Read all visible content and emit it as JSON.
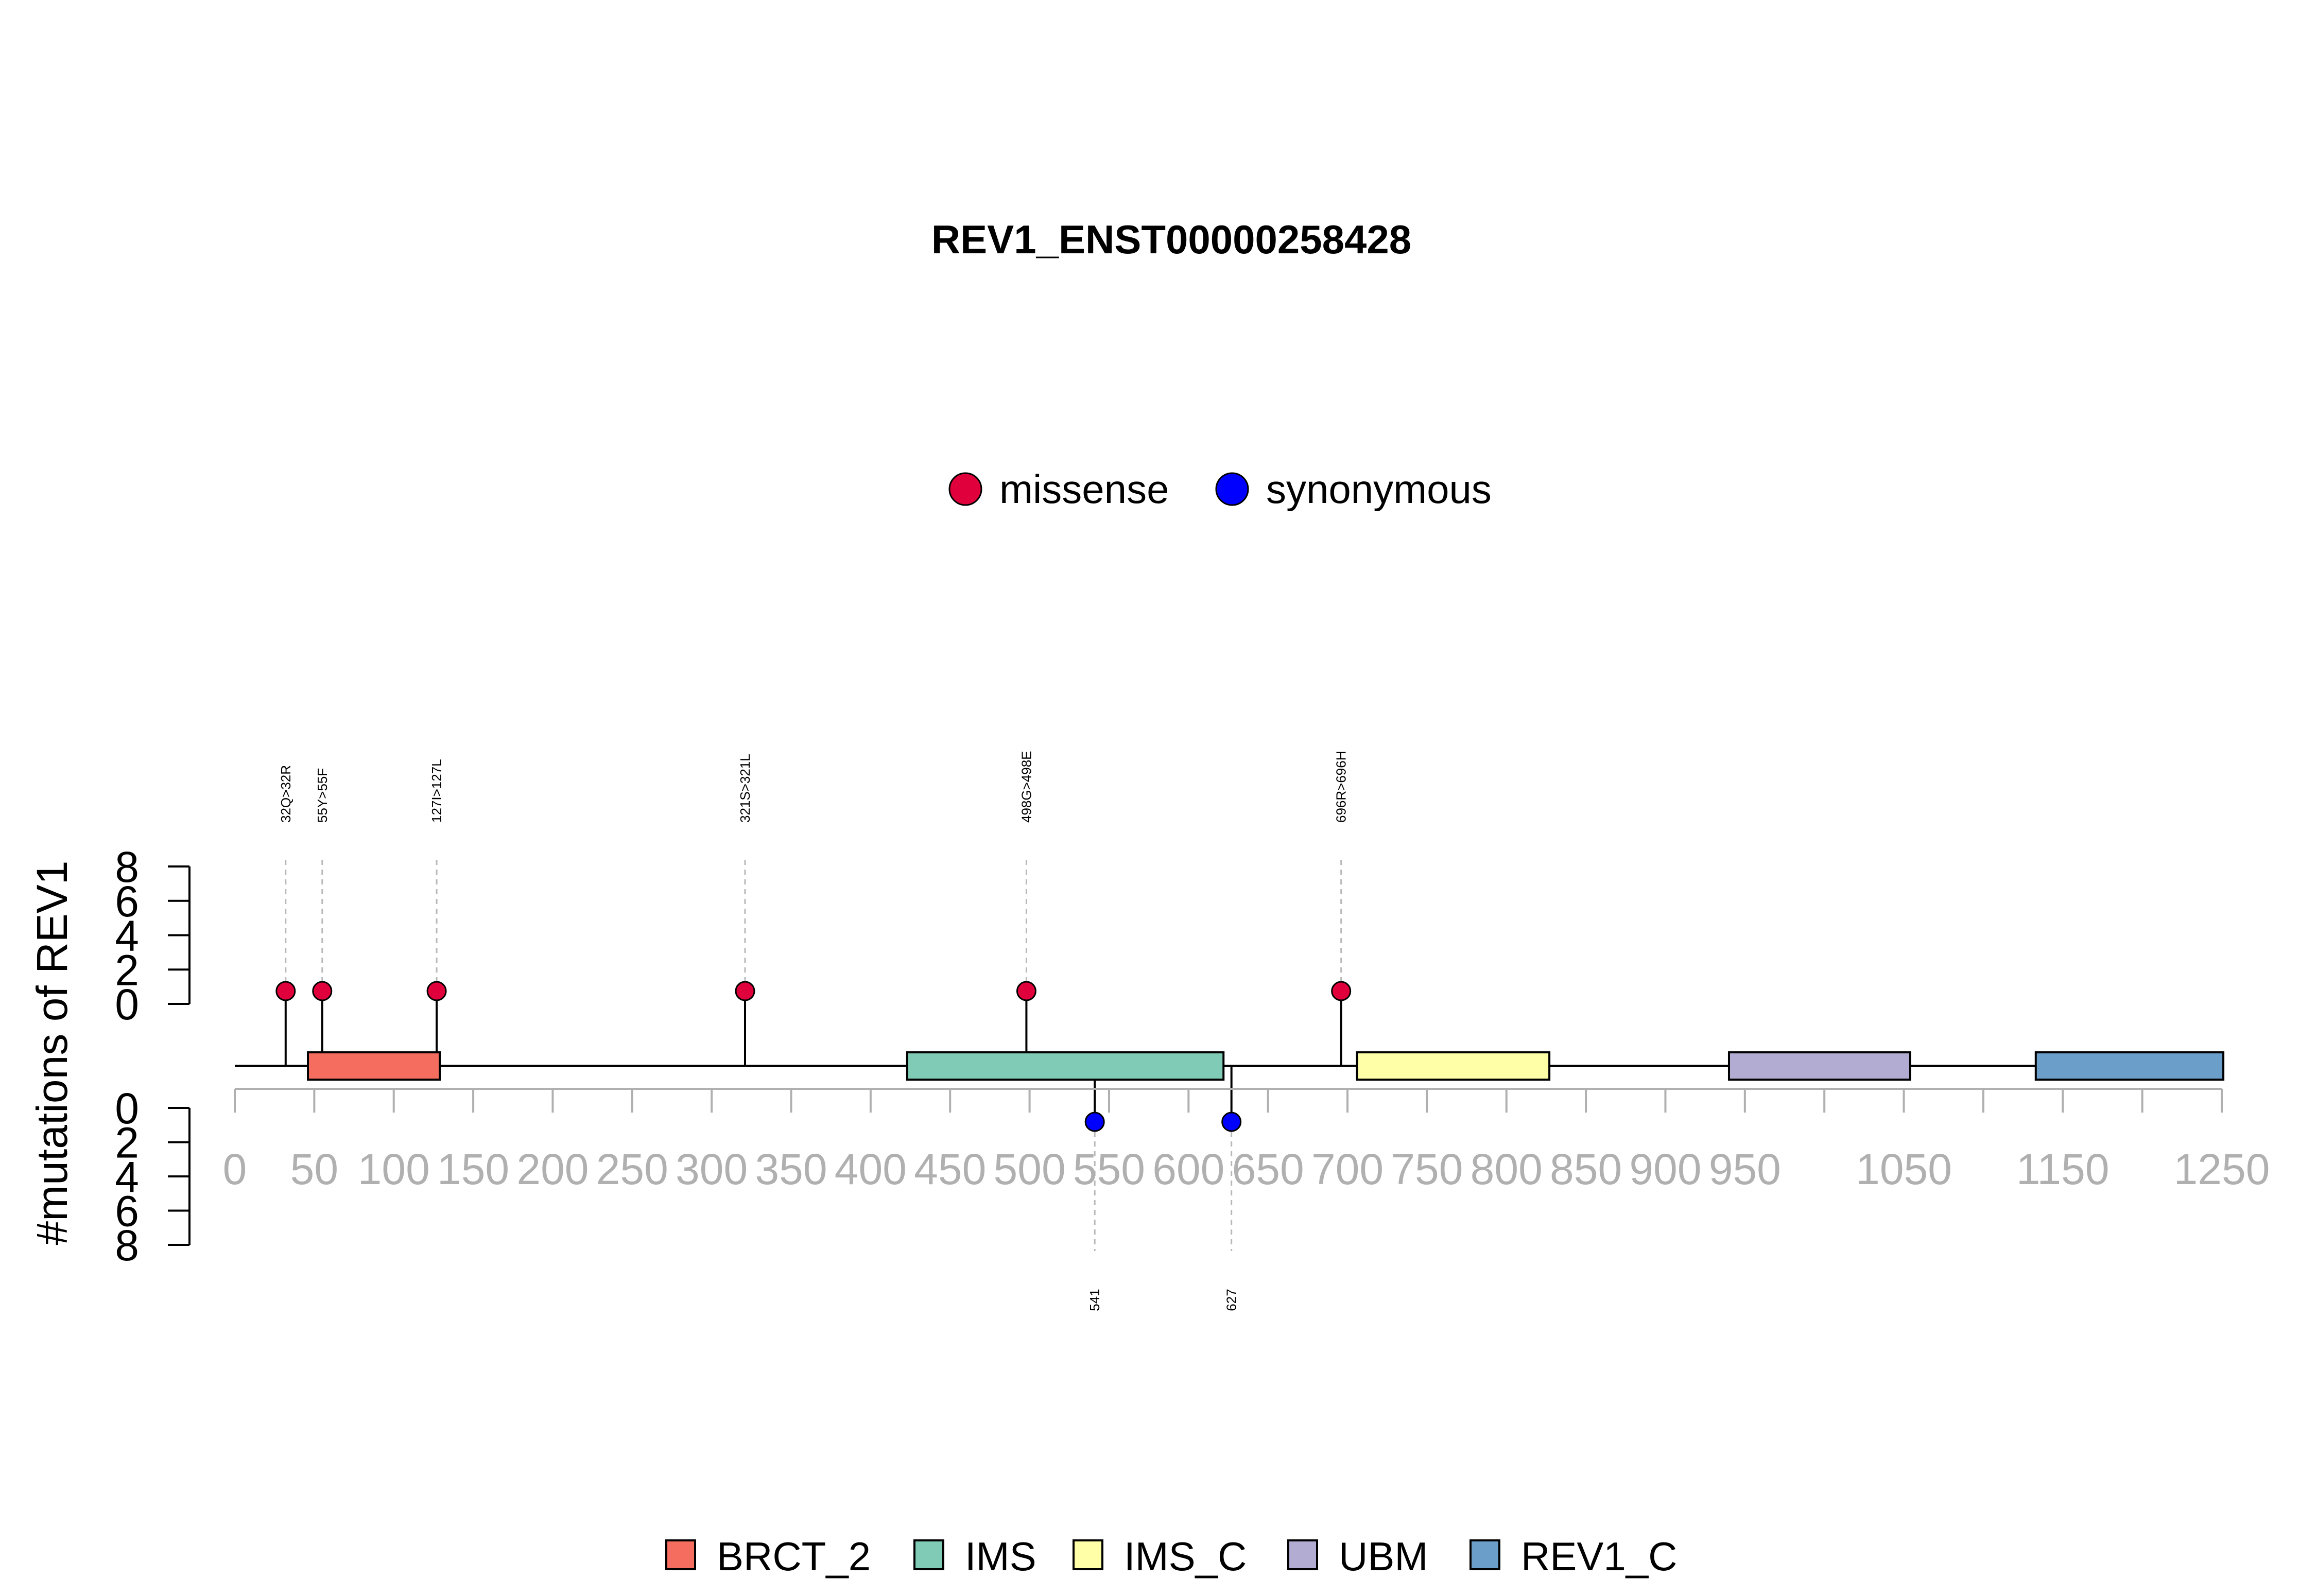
{
  "chart_data": {
    "type": "lollipop",
    "title": "REV1_ENST00000258428",
    "ylabel": "#mutations of REV1",
    "xlim": [
      0,
      1250
    ],
    "x_ticks": [
      0,
      50,
      100,
      150,
      200,
      250,
      300,
      350,
      400,
      450,
      500,
      550,
      600,
      650,
      700,
      750,
      800,
      850,
      900,
      950,
      1000,
      1050,
      1100,
      1150,
      1200,
      1250
    ],
    "x_tick_labels": [
      "0",
      "50",
      "100",
      "150",
      "200",
      "250",
      "300",
      "350",
      "400",
      "450",
      "500",
      "550",
      "600",
      "650",
      "700",
      "750",
      "800",
      "850",
      "900",
      "950",
      "",
      "1050",
      "",
      "1150",
      "",
      "1250"
    ],
    "y_ticks": [
      0,
      2,
      4,
      6,
      8
    ],
    "y_tick_labels": [
      "0",
      "2",
      "4",
      "6",
      "8"
    ],
    "ylim": [
      0,
      8
    ],
    "mutation_types": [
      {
        "name": "missense",
        "color": "#e0003c"
      },
      {
        "name": "synonymous",
        "color": "#0000ff"
      }
    ],
    "mutations_above": [
      {
        "position": 32,
        "count": 1,
        "label": "32Q>32R",
        "type": "missense"
      },
      {
        "position": 55,
        "count": 1,
        "label": "55Y>55F",
        "type": "missense"
      },
      {
        "position": 127,
        "count": 1,
        "label": "127I>127L",
        "type": "missense"
      },
      {
        "position": 321,
        "count": 1,
        "label": "321S>321L",
        "type": "missense"
      },
      {
        "position": 498,
        "count": 1,
        "label": "498G>498E",
        "type": "missense"
      },
      {
        "position": 696,
        "count": 1,
        "label": "696R>696H",
        "type": "missense"
      }
    ],
    "mutations_below": [
      {
        "position": 541,
        "count": 1,
        "label": "541",
        "type": "synonymous"
      },
      {
        "position": 627,
        "count": 1,
        "label": "627",
        "type": "synonymous"
      }
    ],
    "domains": [
      {
        "name": "BRCT_2",
        "start": 46,
        "end": 129,
        "color": "#f46d5e"
      },
      {
        "name": "IMS",
        "start": 423,
        "end": 622,
        "color": "#7fcbb5"
      },
      {
        "name": "IMS_C",
        "start": 706,
        "end": 827,
        "color": "#ffffa8"
      },
      {
        "name": "UBM",
        "start": 940,
        "end": 1054,
        "color": "#b2abd2"
      },
      {
        "name": "REV1_C",
        "start": 1133,
        "end": 1251,
        "color": "#6b9ec8"
      }
    ]
  }
}
